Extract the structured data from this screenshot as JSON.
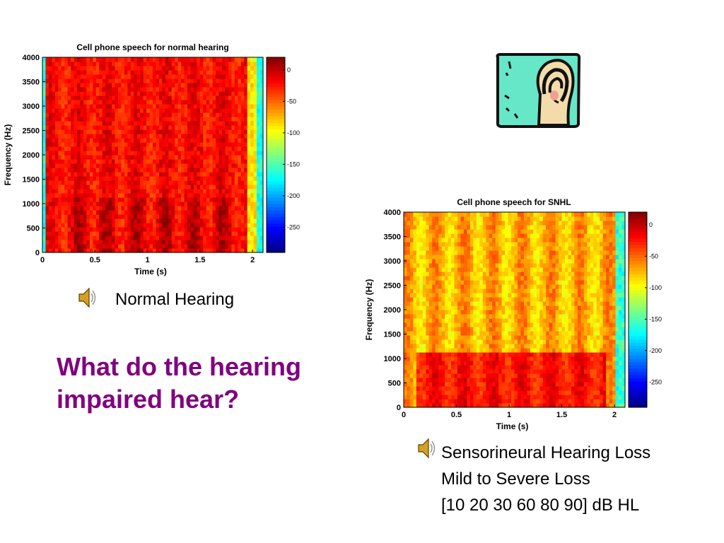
{
  "slide": {
    "title_line1": "What do the hearing",
    "title_line2": "impaired hear?",
    "caption_normal": "Normal Hearing",
    "caption_snhl": [
      "Sensorineural Hearing Loss",
      "Mild to Severe Loss",
      "[10 20 30 60 80 90] dB HL"
    ],
    "icons": {
      "speaker": "speaker-icon",
      "ear": "ear-icon"
    },
    "colors": {
      "title": "#800080",
      "ear_background": "#66e8c8",
      "ear_skin": "#f4dcaa"
    }
  },
  "chart_data": [
    {
      "type": "heatmap",
      "title": "Cell phone speech for normal hearing",
      "xlabel": "Time (s)",
      "ylabel": "Frequency (Hz)",
      "xlim": [
        0,
        2.1
      ],
      "ylim": [
        0,
        4000
      ],
      "xticks": [
        0,
        0.5,
        1,
        1.5,
        2
      ],
      "xtick_labels": [
        "0",
        "0.5",
        "1",
        "1.5",
        "2"
      ],
      "yticks": [
        0,
        500,
        1000,
        1500,
        2000,
        2500,
        3000,
        3500,
        4000
      ],
      "ytick_labels": [
        "0",
        "500",
        "1000",
        "1500",
        "2000",
        "2500",
        "3000",
        "3500",
        "4000"
      ],
      "colorbar": {
        "range": [
          -290,
          20
        ],
        "ticks": [
          0,
          -50,
          -100,
          -150,
          -200,
          -250
        ],
        "tick_labels": [
          "0",
          "-50",
          "-100",
          "-150",
          "-200",
          "-250"
        ],
        "colormap": "jet"
      },
      "bandwidth_hz": 4000
    },
    {
      "type": "heatmap",
      "title": "Cell phone speech for SNHL",
      "xlabel": "Time (s)",
      "ylabel": "Frequency (Hz)",
      "xlim": [
        0,
        2.1
      ],
      "ylim": [
        0,
        4000
      ],
      "xticks": [
        0,
        0.5,
        1,
        1.5,
        2
      ],
      "xtick_labels": [
        "0",
        "0.5",
        "1",
        "1.5",
        "2"
      ],
      "yticks": [
        0,
        500,
        1000,
        1500,
        2000,
        2500,
        3000,
        3500,
        4000
      ],
      "ytick_labels": [
        "0",
        "500",
        "1000",
        "1500",
        "2000",
        "2500",
        "3000",
        "3500",
        "4000"
      ],
      "colorbar": {
        "range": [
          -290,
          20
        ],
        "ticks": [
          0,
          -50,
          -100,
          -150,
          -200,
          -250
        ],
        "tick_labels": [
          "0",
          "-50",
          "-100",
          "-150",
          "-200",
          "-250"
        ],
        "colormap": "jet"
      },
      "bandwidth_hz": 4000
    }
  ]
}
